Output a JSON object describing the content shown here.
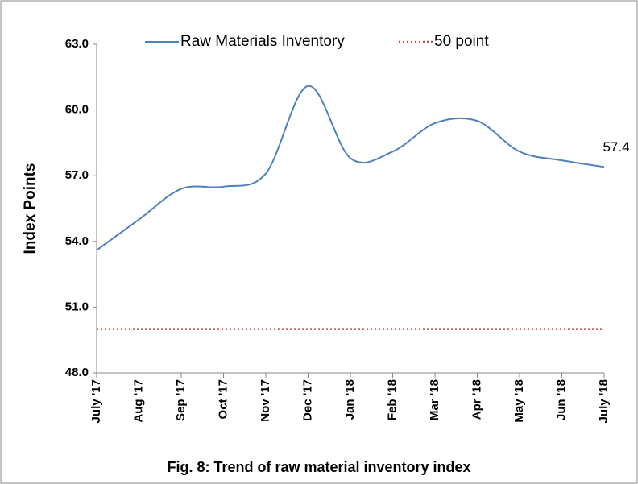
{
  "chart_data": {
    "type": "line",
    "title": "Fig. 8: Trend of raw material inventory index",
    "ylabel": "Index Points",
    "categories": [
      "July '17",
      "Aug '17",
      "Sep '17",
      "Oct '17",
      "Nov '17",
      "Dec '17",
      "Jan '18",
      "Feb '18",
      "Mar '18",
      "Apr '18",
      "May '18",
      "Jun '18",
      "July '18"
    ],
    "series": [
      {
        "name": "Raw Materials Inventory",
        "color": "#4f81bd",
        "style": "solid",
        "smooth": true,
        "values": [
          53.6,
          55.0,
          56.4,
          56.5,
          57.1,
          61.1,
          57.8,
          58.1,
          59.4,
          59.5,
          58.1,
          57.7,
          57.4
        ]
      },
      {
        "name": "50 point",
        "color": "#c0504d",
        "style": "dotted",
        "smooth": false,
        "values": [
          50,
          50,
          50,
          50,
          50,
          50,
          50,
          50,
          50,
          50,
          50,
          50,
          50
        ]
      }
    ],
    "ylim": [
      48,
      63
    ],
    "yticks": [
      {
        "value": 48,
        "label": "48.0"
      },
      {
        "value": 51,
        "label": "51.0"
      },
      {
        "value": 54,
        "label": "54.0"
      },
      {
        "value": 57,
        "label": "57.0"
      },
      {
        "value": 60,
        "label": "60.0"
      },
      {
        "value": 63,
        "label": "63.0"
      }
    ],
    "grid": false,
    "legend": "top"
  }
}
